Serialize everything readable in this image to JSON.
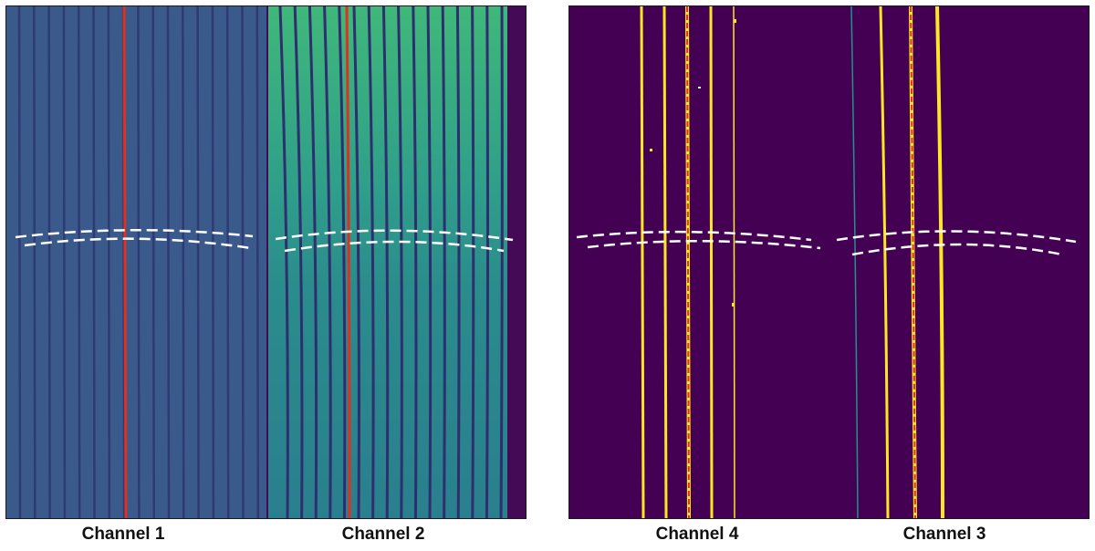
{
  "captions": {
    "channel_1": "Channel 1",
    "channel_2": "Channel 2",
    "channel_4": "Channel 4",
    "channel_3": "Channel 3"
  },
  "colors": {
    "background_dark": "#440154",
    "stripe_blue": "#3a5e8c",
    "stripe_green": "#2fb47c",
    "stripe_yellow": "#fde725",
    "trace_red": "#e0301e",
    "dashed_white": "#ffffff"
  }
}
